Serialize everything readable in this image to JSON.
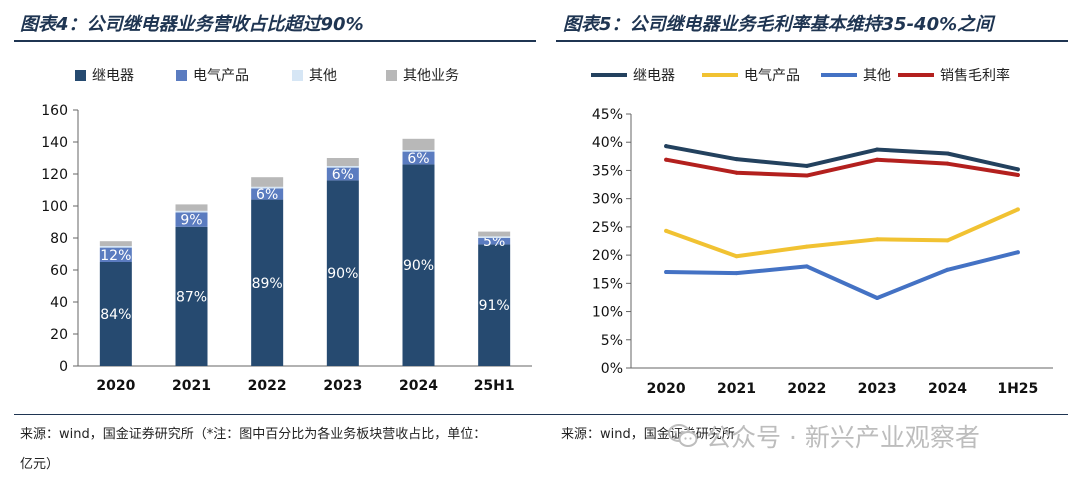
{
  "left_panel": {
    "title": "图表4：公司继电器业务营收占比超过90%",
    "source_line1": "来源：wind，国金证券研究所（*注：图中百分比为各业务板块营收占比，单位：",
    "source_line2": "亿元）"
  },
  "right_panel": {
    "title": "图表5：公司继电器业务毛利率基本维持35-40%之间",
    "source": "来源：wind，国金证券研究所"
  },
  "watermark": {
    "text": "公众号 · 新兴产业观察者",
    "icon": "wechat-icon"
  },
  "colors": {
    "relay": "#264a70",
    "electrical": "#5b7cc0",
    "other": "#d6e6f5",
    "other_business": "#b8b8b8",
    "line_relay": "#23415e",
    "line_electrical": "#f1c232",
    "line_other": "#4472c4",
    "line_margin": "#b3201e",
    "title": "#1f3552"
  },
  "chart_data": [
    {
      "type": "bar",
      "stacked": true,
      "categories": [
        "2020",
        "2021",
        "2022",
        "2023",
        "2024",
        "25H1"
      ],
      "series": [
        {
          "name": "继电器",
          "values": [
            65,
            87,
            104,
            116,
            126,
            76
          ]
        },
        {
          "name": "电气产品",
          "values": [
            9,
            9,
            7,
            8,
            8,
            4
          ]
        },
        {
          "name": "其他",
          "values": [
            1,
            1,
            1,
            1,
            1,
            1
          ]
        },
        {
          "name": "其他业务",
          "values": [
            3,
            4,
            6,
            5,
            7,
            3
          ]
        }
      ],
      "data_labels": {
        "继电器": [
          "84%",
          "87%",
          "89%",
          "90%",
          "90%",
          "91%"
        ],
        "电气产品": [
          "12%",
          "9%",
          "6%",
          "6%",
          "6%",
          "5%"
        ]
      },
      "ylim": [
        0,
        160
      ],
      "yticks": [
        0,
        20,
        40,
        60,
        80,
        100,
        120,
        140,
        160
      ],
      "legend_position": "top"
    },
    {
      "type": "line",
      "categories": [
        "2020",
        "2021",
        "2022",
        "2023",
        "2024",
        "1H25"
      ],
      "series": [
        {
          "name": "继电器",
          "values": [
            39.3,
            37.0,
            35.8,
            38.7,
            38.0,
            35.2
          ]
        },
        {
          "name": "电气产品",
          "values": [
            24.3,
            19.8,
            21.5,
            22.8,
            22.6,
            28.1
          ]
        },
        {
          "name": "其他",
          "values": [
            17.0,
            16.8,
            18.0,
            12.4,
            17.4,
            20.5
          ]
        },
        {
          "name": "销售毛利率",
          "values": [
            36.9,
            34.6,
            34.1,
            36.9,
            36.2,
            34.2
          ]
        }
      ],
      "ylim": [
        0,
        45
      ],
      "yticks": [
        "0%",
        "5%",
        "10%",
        "15%",
        "20%",
        "25%",
        "30%",
        "35%",
        "40%",
        "45%"
      ],
      "legend_position": "top"
    }
  ]
}
